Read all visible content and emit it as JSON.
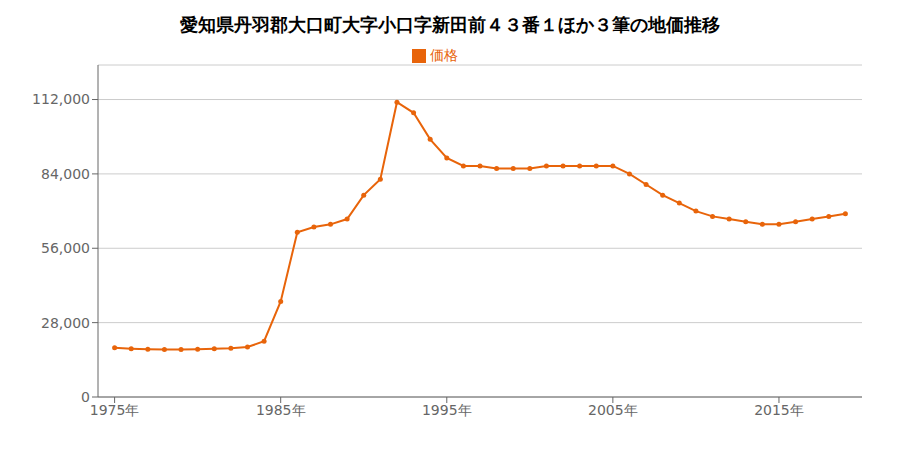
{
  "chart_data": {
    "type": "line",
    "title": "愛知県丹羽郡大口町大字小口字新田前４３番１ほか３筆の地価推移",
    "x": [
      1975,
      1976,
      1977,
      1978,
      1979,
      1980,
      1981,
      1982,
      1983,
      1984,
      1985,
      1986,
      1987,
      1988,
      1989,
      1990,
      1991,
      1992,
      1993,
      1994,
      1995,
      1996,
      1997,
      1998,
      1999,
      2000,
      2001,
      2002,
      2003,
      2004,
      2005,
      2006,
      2007,
      2008,
      2009,
      2010,
      2011,
      2012,
      2013,
      2014,
      2015,
      2016,
      2017,
      2018,
      2019
    ],
    "series": [
      {
        "name": "価格",
        "color": "#e8640a",
        "marker": "circle",
        "line_style": "solid",
        "values": [
          18500,
          18200,
          18000,
          17900,
          17900,
          18000,
          18200,
          18400,
          18800,
          21000,
          36000,
          62000,
          64000,
          65000,
          67000,
          76000,
          82000,
          111000,
          107000,
          97000,
          90000,
          87000,
          87000,
          86000,
          86000,
          86000,
          87000,
          87000,
          87000,
          87000,
          87000,
          84000,
          80000,
          76000,
          73000,
          70000,
          68000,
          67000,
          66000,
          65000,
          65000,
          66000,
          67000,
          68000,
          69000
        ]
      }
    ],
    "xlim": [
      1974,
      2020
    ],
    "xticks": [
      {
        "value": 1975,
        "label": "1975年"
      },
      {
        "value": 1985,
        "label": "1985年"
      },
      {
        "value": 1995,
        "label": "1995年"
      },
      {
        "value": 2005,
        "label": "2005年"
      },
      {
        "value": 2015,
        "label": "2015年"
      }
    ],
    "ylim": [
      0,
      125000
    ],
    "yticks": [
      0,
      {
        "value": 28000,
        "label": "28,000"
      },
      {
        "value": 56000,
        "label": "56,000"
      },
      {
        "value": 84000,
        "label": "84,000"
      },
      {
        "value": 112000,
        "label": "112,000"
      }
    ],
    "grid": "y",
    "legend": "top"
  }
}
